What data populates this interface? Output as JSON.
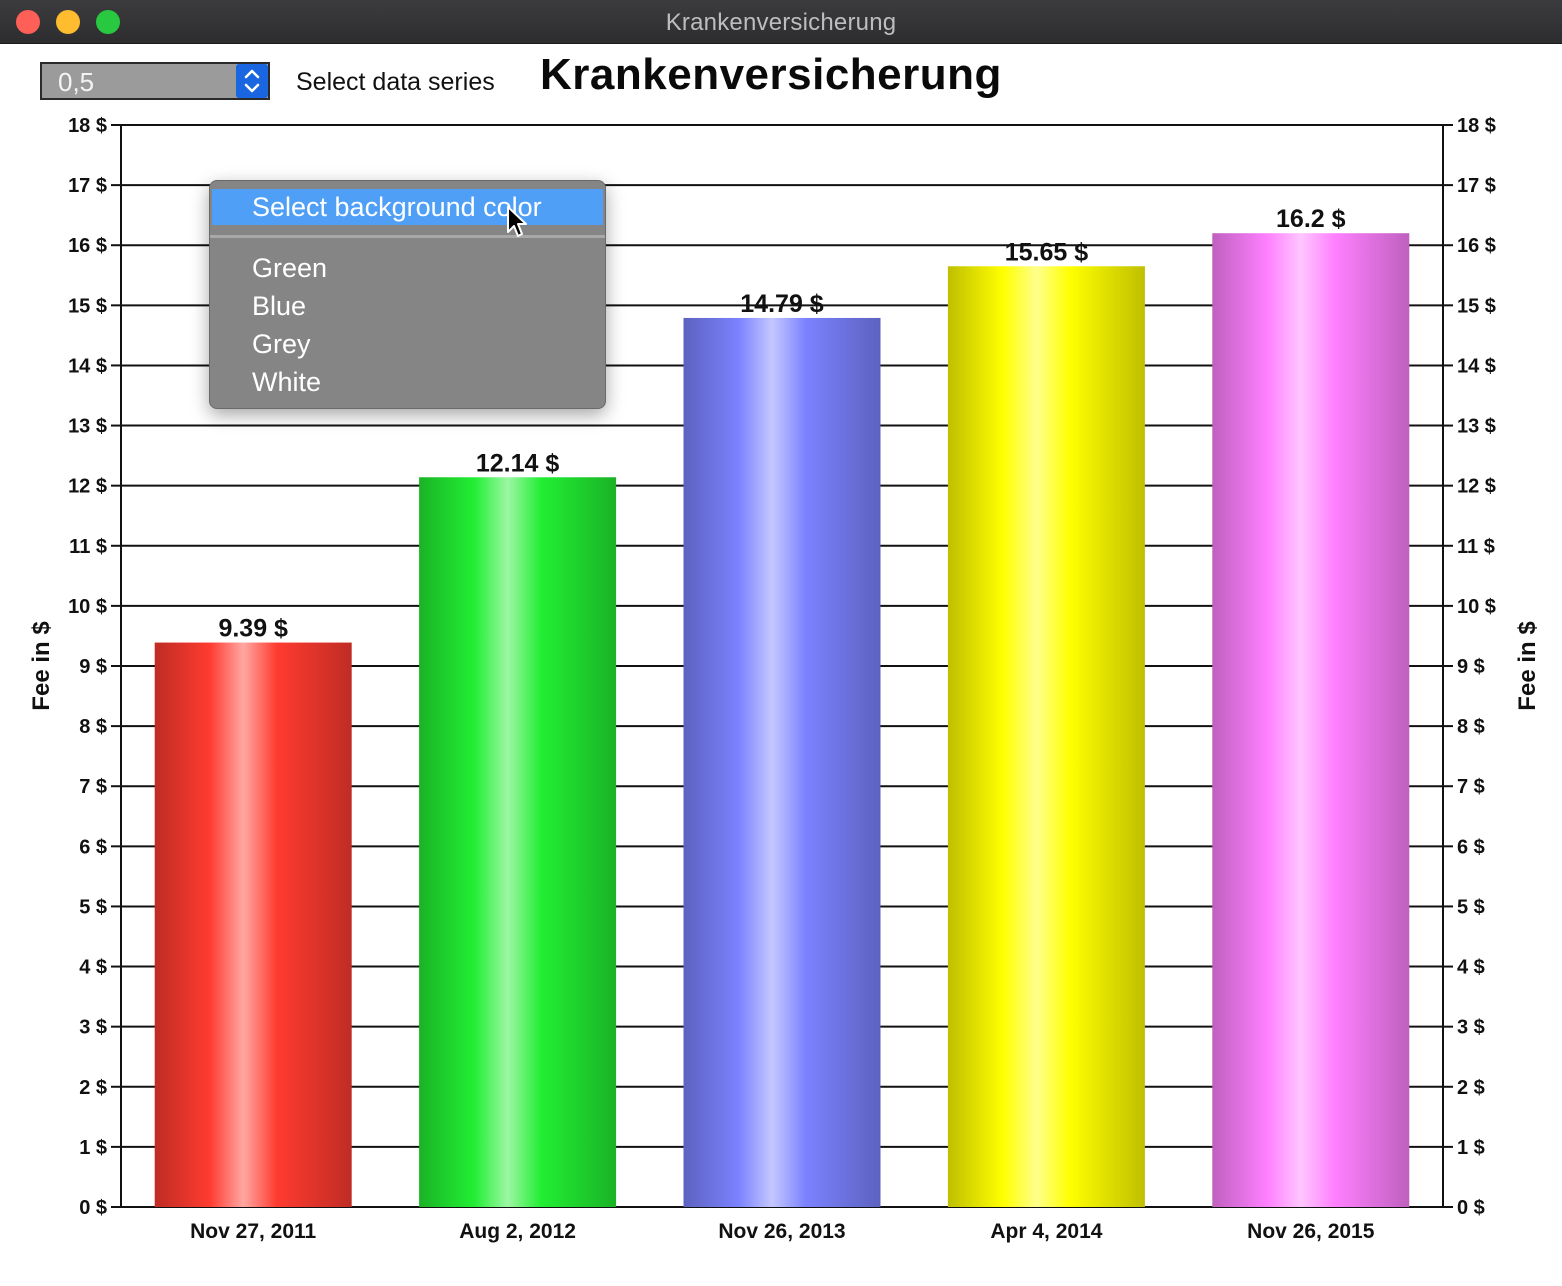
{
  "window": {
    "title": "Krankenversicherung"
  },
  "toolbar": {
    "spinner_value": "0,5",
    "series_label": "Select data series"
  },
  "context_menu": {
    "header": "Select background color",
    "items": [
      "Green",
      "Blue",
      "Grey",
      "White"
    ]
  },
  "chart_data": {
    "type": "bar",
    "title": "Krankenversicherung",
    "ylabel": "Fee in $",
    "ylabel_right": "Fee in $",
    "xlabel": "",
    "categories": [
      "Nov 27, 2011",
      "Aug 2, 2012",
      "Nov 26, 2013",
      "Apr 4, 2014",
      "Nov 26, 2015"
    ],
    "values": [
      9.39,
      12.14,
      14.79,
      15.65,
      16.2
    ],
    "value_labels": [
      "9.39 $",
      "12.14 $",
      "14.79 $",
      "15.65 $",
      "16.2 $"
    ],
    "bar_colors": [
      "#ff3b30",
      "#22ee33",
      "#7b82ff",
      "#ffff00",
      "#ff80ff"
    ],
    "ylim": [
      0,
      18
    ],
    "ytick_step": 1,
    "ytick_suffix": " $",
    "grid": true
  }
}
